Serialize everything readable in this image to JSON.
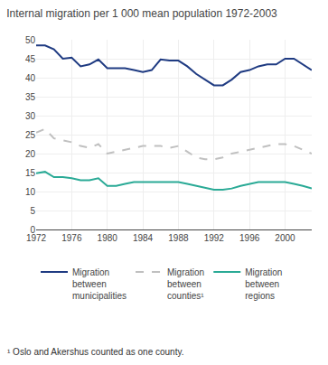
{
  "chart_data": {
    "type": "line",
    "title": "Internal migration per 1 000 mean population 1972-2003",
    "x": [
      1972,
      1973,
      1974,
      1975,
      1976,
      1977,
      1978,
      1979,
      1980,
      1981,
      1982,
      1983,
      1984,
      1985,
      1986,
      1987,
      1988,
      1989,
      1990,
      1991,
      1992,
      1993,
      1994,
      1995,
      1996,
      1997,
      1998,
      1999,
      2000,
      2001,
      2002,
      2003
    ],
    "series": [
      {
        "name": "Migration\nbetween\nmunicipalities",
        "color": "#1f3b82",
        "line_style": "solid",
        "values": [
          48.5,
          48.5,
          47.5,
          45.0,
          45.3,
          43.0,
          43.5,
          44.8,
          42.5,
          42.5,
          42.5,
          42.0,
          41.5,
          42.0,
          44.8,
          44.5,
          44.5,
          43.0,
          41.0,
          39.5,
          38.0,
          38.0,
          39.5,
          41.5,
          42.0,
          43.0,
          43.5,
          43.5,
          45.0,
          45.0,
          43.5,
          42.0
        ]
      },
      {
        "name": "Migration\nbetween\ncounties¹",
        "color": "#c0c0c0",
        "line_style": "dashed",
        "values": [
          25.5,
          26.5,
          24.0,
          23.5,
          23.0,
          22.0,
          21.5,
          22.5,
          20.0,
          20.5,
          21.0,
          21.5,
          22.0,
          22.0,
          22.0,
          21.5,
          22.0,
          20.5,
          19.0,
          18.5,
          18.5,
          19.0,
          20.0,
          20.5,
          21.0,
          21.5,
          22.0,
          22.5,
          22.5,
          22.0,
          21.0,
          20.0
        ]
      },
      {
        "name": "Migration\nbetween\nregions",
        "color": "#2aaa96",
        "line_style": "solid",
        "values": [
          14.8,
          15.2,
          13.8,
          13.8,
          13.5,
          13.0,
          13.0,
          13.5,
          11.5,
          11.5,
          12.0,
          12.5,
          12.5,
          12.5,
          12.5,
          12.5,
          12.5,
          12.0,
          11.5,
          11.0,
          10.5,
          10.5,
          10.8,
          11.5,
          12.0,
          12.5,
          12.5,
          12.5,
          12.5,
          12.0,
          11.5,
          10.8
        ]
      }
    ],
    "xlim": [
      1972,
      2003
    ],
    "xticks": [
      1972,
      1976,
      1980,
      1984,
      1988,
      1992,
      1996,
      2000
    ],
    "ylim": [
      0,
      50
    ],
    "yticks": [
      0,
      5,
      10,
      15,
      20,
      25,
      30,
      35,
      40,
      45,
      50
    ],
    "grid": true,
    "legend": "bottom",
    "annotations": [
      "¹ Oslo and Akershus counted as one county."
    ]
  }
}
